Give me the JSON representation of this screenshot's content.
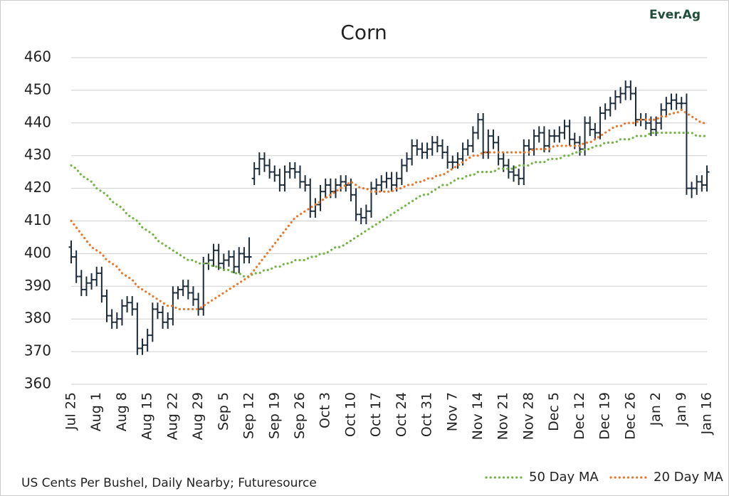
{
  "chart_data": {
    "type": "ohlc",
    "title": "Corn",
    "logo": "Ever.Ag",
    "source": "US Cents Per Bushel, Daily Nearby; Futuresource",
    "categories": [
      "Jul 25",
      null,
      null,
      null,
      null,
      "Aug 1",
      null,
      null,
      null,
      null,
      "Aug 8",
      null,
      null,
      null,
      null,
      "Aug 15",
      null,
      null,
      null,
      null,
      "Aug 22",
      null,
      null,
      null,
      null,
      "Aug 29",
      null,
      null,
      null,
      null,
      "Sep 5",
      null,
      null,
      null,
      null,
      "Sep 12",
      null,
      null,
      null,
      null,
      "Sep 19",
      null,
      null,
      null,
      null,
      "Sep 26",
      null,
      null,
      null,
      null,
      "Oct 3",
      null,
      null,
      null,
      null,
      "Oct 10",
      null,
      null,
      null,
      null,
      "Oct 17",
      null,
      null,
      null,
      null,
      "Oct 24",
      null,
      null,
      null,
      null,
      "Oct 31",
      null,
      null,
      null,
      null,
      "Nov 7",
      null,
      null,
      null,
      null,
      "Nov 14",
      null,
      null,
      null,
      null,
      "Nov 21",
      null,
      null,
      null,
      null,
      "Nov 28",
      null,
      null,
      null,
      null,
      "Dec 5",
      null,
      null,
      null,
      null,
      "Dec 12",
      null,
      null,
      null,
      null,
      "Dec 19",
      null,
      null,
      null,
      null,
      "Dec 26",
      null,
      null,
      null,
      null,
      "Jan 2",
      null,
      null,
      null,
      null,
      "Jan 9",
      null,
      null,
      null,
      null,
      "Jan 16"
    ],
    "open": [
      402,
      399,
      393,
      389,
      391,
      392,
      394,
      387,
      381,
      379,
      380,
      384,
      385,
      383,
      371,
      372,
      375,
      383,
      382,
      379,
      380,
      388,
      389,
      390,
      388,
      386,
      383,
      397,
      398,
      401,
      397,
      398,
      399,
      396,
      400,
      399,
      423,
      426,
      429,
      427,
      425,
      424,
      421,
      425,
      426,
      425,
      422,
      421,
      413,
      415,
      419,
      421,
      419,
      421,
      422,
      421,
      418,
      412,
      411,
      413,
      420,
      421,
      422,
      423,
      421,
      423,
      427,
      429,
      433,
      432,
      431,
      432,
      434,
      433,
      431,
      428,
      428,
      429,
      432,
      433,
      437,
      441,
      431,
      436,
      434,
      429,
      427,
      425,
      424,
      423,
      433,
      432,
      436,
      437,
      433,
      436,
      436,
      437,
      439,
      435,
      434,
      432,
      440,
      438,
      437,
      443,
      444,
      446,
      448,
      449,
      451,
      449,
      441,
      441,
      440,
      438,
      440,
      444,
      446,
      447,
      446,
      446,
      420,
      420,
      422,
      421
    ],
    "high": [
      404,
      401,
      395,
      393,
      394,
      396,
      396,
      389,
      383,
      382,
      386,
      387,
      387,
      385,
      374,
      377,
      385,
      385,
      384,
      382,
      390,
      390,
      392,
      392,
      390,
      388,
      399,
      400,
      403,
      403,
      400,
      401,
      401,
      402,
      402,
      405,
      428,
      431,
      431,
      429,
      427,
      426,
      427,
      428,
      428,
      427,
      424,
      423,
      417,
      421,
      423,
      423,
      423,
      424,
      424,
      423,
      420,
      414,
      415,
      422,
      423,
      424,
      425,
      425,
      425,
      429,
      431,
      435,
      435,
      434,
      434,
      436,
      436,
      435,
      433,
      430,
      431,
      434,
      435,
      439,
      443,
      443,
      438,
      438,
      436,
      431,
      429,
      427,
      426,
      435,
      435,
      438,
      439,
      439,
      438,
      438,
      439,
      441,
      441,
      437,
      436,
      442,
      442,
      440,
      445,
      446,
      448,
      450,
      451,
      453,
      453,
      451,
      443,
      443,
      442,
      442,
      446,
      448,
      449,
      449,
      448,
      449,
      422,
      424,
      424,
      427
    ],
    "low": [
      397,
      391,
      387,
      387,
      389,
      390,
      385,
      379,
      377,
      377,
      378,
      382,
      381,
      369,
      369,
      370,
      373,
      380,
      377,
      377,
      378,
      386,
      387,
      386,
      384,
      381,
      381,
      395,
      396,
      395,
      395,
      396,
      394,
      394,
      397,
      397,
      421,
      424,
      425,
      423,
      422,
      419,
      419,
      423,
      423,
      420,
      419,
      411,
      411,
      413,
      417,
      417,
      417,
      419,
      419,
      416,
      410,
      409,
      409,
      411,
      418,
      419,
      420,
      419,
      419,
      421,
      425,
      427,
      430,
      429,
      429,
      430,
      431,
      429,
      426,
      426,
      426,
      427,
      430,
      431,
      435,
      429,
      429,
      432,
      427,
      425,
      423,
      422,
      421,
      421,
      430,
      430,
      434,
      431,
      431,
      434,
      434,
      435,
      433,
      432,
      430,
      430,
      436,
      435,
      435,
      441,
      442,
      444,
      446,
      447,
      447,
      439,
      439,
      438,
      436,
      436,
      438,
      442,
      444,
      444,
      444,
      418,
      417,
      418,
      419,
      419
    ],
    "close": [
      399,
      393,
      389,
      391,
      392,
      394,
      387,
      381,
      379,
      380,
      384,
      385,
      383,
      371,
      372,
      375,
      383,
      382,
      379,
      380,
      388,
      389,
      390,
      388,
      386,
      383,
      397,
      398,
      401,
      397,
      398,
      399,
      396,
      400,
      399,
      399,
      426,
      429,
      427,
      425,
      424,
      421,
      425,
      426,
      425,
      422,
      421,
      413,
      415,
      419,
      421,
      419,
      421,
      422,
      421,
      418,
      412,
      411,
      413,
      420,
      421,
      422,
      423,
      421,
      423,
      427,
      429,
      433,
      432,
      431,
      432,
      434,
      433,
      431,
      428,
      428,
      429,
      432,
      433,
      437,
      441,
      431,
      436,
      434,
      429,
      427,
      425,
      424,
      423,
      433,
      432,
      436,
      437,
      433,
      436,
      436,
      437,
      439,
      435,
      434,
      432,
      440,
      438,
      437,
      443,
      444,
      446,
      448,
      449,
      451,
      449,
      441,
      441,
      440,
      438,
      440,
      444,
      446,
      447,
      446,
      446,
      420,
      420,
      422,
      421,
      425
    ],
    "color": "#1c2b39",
    "series": [
      {
        "name": "50 Day MA",
        "color": "#74b446",
        "values": [
          427,
          426,
          424,
          423,
          422,
          420,
          419,
          418,
          416,
          415,
          414,
          412,
          411,
          410,
          408,
          407,
          406,
          404,
          403,
          402,
          401,
          400,
          399,
          398,
          398,
          397,
          397,
          397,
          396,
          396,
          395,
          395,
          394,
          394,
          393,
          393,
          394,
          394,
          395,
          395,
          396,
          396,
          397,
          397,
          398,
          398,
          398,
          399,
          399,
          400,
          400,
          401,
          402,
          402,
          403,
          404,
          405,
          406,
          407,
          408,
          409,
          410,
          411,
          412,
          413,
          414,
          415,
          416,
          417,
          418,
          418,
          419,
          420,
          421,
          421,
          422,
          423,
          423,
          424,
          424,
          425,
          425,
          425,
          425,
          426,
          426,
          426,
          426,
          427,
          427,
          427,
          428,
          428,
          428,
          429,
          429,
          429,
          430,
          430,
          431,
          431,
          432,
          432,
          433,
          433,
          434,
          434,
          434,
          435,
          435,
          435,
          436,
          436,
          436,
          437,
          437,
          437,
          437,
          437,
          437,
          437,
          437,
          437,
          436,
          436,
          436
        ]
      },
      {
        "name": "20 Day MA",
        "color": "#e9782d",
        "values": [
          410,
          408,
          406,
          404,
          402,
          401,
          400,
          398,
          397,
          396,
          394,
          393,
          392,
          390,
          389,
          388,
          387,
          386,
          385,
          384,
          384,
          383,
          383,
          383,
          383,
          383,
          384,
          385,
          386,
          387,
          388,
          389,
          390,
          391,
          392,
          393,
          395,
          397,
          399,
          401,
          403,
          405,
          407,
          409,
          411,
          412,
          413,
          414,
          415,
          416,
          417,
          418,
          419,
          420,
          421,
          422,
          421,
          420,
          420,
          419,
          419,
          419,
          419,
          419,
          420,
          420,
          421,
          421,
          422,
          422,
          423,
          423,
          424,
          424,
          425,
          426,
          427,
          428,
          429,
          430,
          430,
          431,
          431,
          431,
          431,
          431,
          431,
          431,
          431,
          431,
          431,
          432,
          432,
          432,
          432,
          433,
          433,
          433,
          433,
          433,
          433,
          434,
          434,
          435,
          436,
          437,
          438,
          439,
          439,
          440,
          440,
          440,
          441,
          441,
          441,
          441,
          442,
          442,
          443,
          443,
          444,
          443,
          442,
          441,
          440,
          440
        ]
      }
    ],
    "ylim": [
      360,
      460
    ],
    "yticks": [
      360,
      370,
      380,
      390,
      400,
      410,
      420,
      430,
      440,
      450,
      460
    ],
    "grid": true,
    "legend": "bottom-right"
  }
}
